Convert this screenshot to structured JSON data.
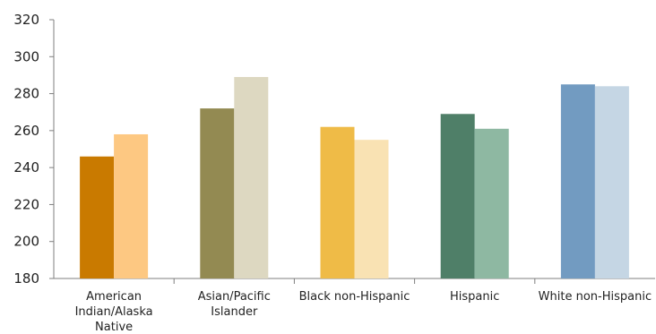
{
  "chart_data": {
    "type": "bar",
    "title": "",
    "xlabel": "",
    "ylabel": "",
    "ylim": [
      180,
      320
    ],
    "yticks": [
      180,
      200,
      220,
      240,
      260,
      280,
      300,
      320
    ],
    "grid": false,
    "legend": "none",
    "categories": [
      "American Indian/Alaska Native",
      "Asian/Pacific Islander",
      "Black non-Hispanic",
      "Hispanic",
      "White non-Hispanic"
    ],
    "category_lines": [
      [
        "American",
        "Indian/Alaska",
        "Native"
      ],
      [
        "Asian/Pacific",
        "Islander"
      ],
      [
        "Black non-Hispanic"
      ],
      [
        "Hispanic"
      ],
      [
        "White non-Hispanic"
      ]
    ],
    "series": [
      {
        "values": [
          246,
          272,
          262,
          269,
          285
        ]
      },
      {
        "values": [
          258,
          289,
          255,
          261,
          284
        ]
      }
    ],
    "bar_colors": [
      [
        "#c97a00",
        "#fdc882"
      ],
      [
        "#938a52",
        "#ddd8c1"
      ],
      [
        "#efbb47",
        "#f9e2b3"
      ],
      [
        "#4f7f68",
        "#8eb8a2"
      ],
      [
        "#729bc1",
        "#c5d6e4"
      ]
    ]
  }
}
